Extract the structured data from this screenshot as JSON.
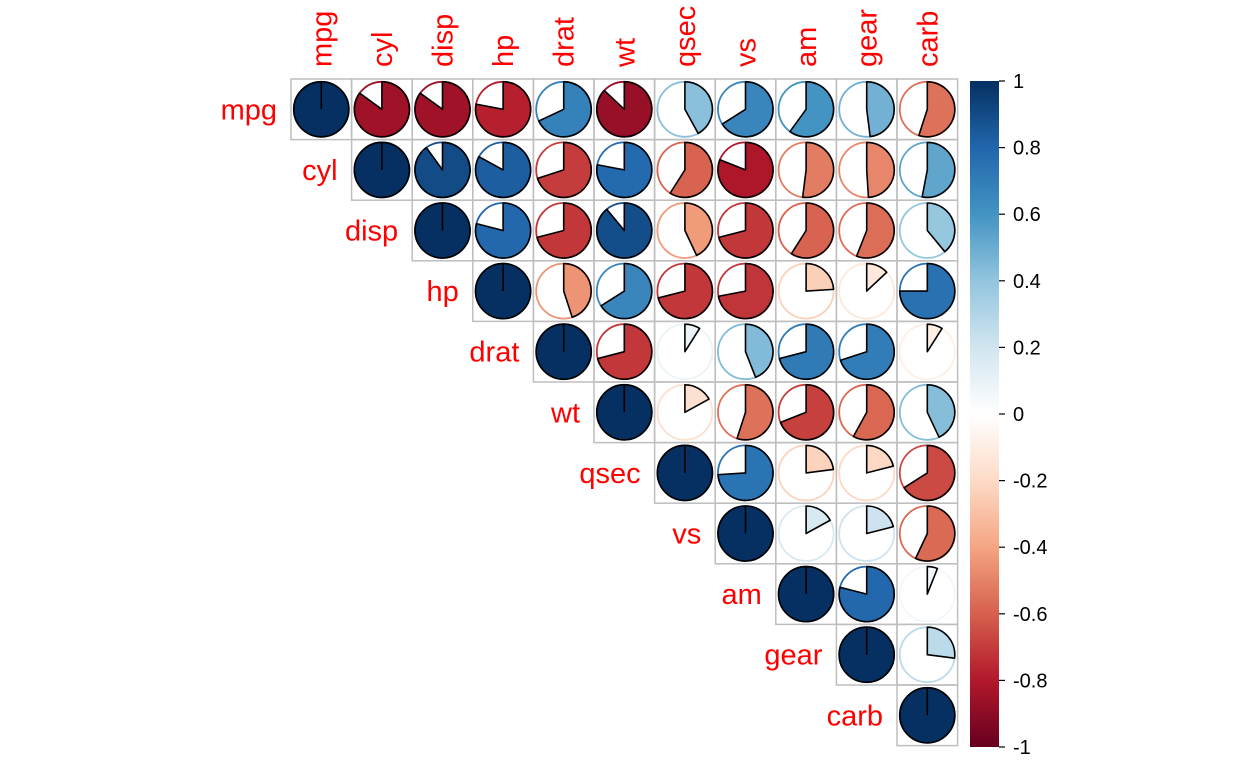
{
  "chart_data": {
    "type": "heatmap",
    "variables": [
      "mpg",
      "cyl",
      "disp",
      "hp",
      "drat",
      "wt",
      "qsec",
      "vs",
      "am",
      "gear",
      "carb"
    ],
    "layout": "upper-triangle",
    "method": "pie",
    "matrix": [
      [
        1,
        -0.85,
        -0.85,
        -0.78,
        0.68,
        -0.87,
        0.42,
        0.66,
        0.6,
        0.48,
        -0.55
      ],
      [
        -0.85,
        1,
        0.9,
        0.83,
        -0.7,
        0.78,
        -0.59,
        -0.81,
        -0.52,
        -0.49,
        0.53
      ],
      [
        -0.85,
        0.9,
        1,
        0.79,
        -0.71,
        0.89,
        -0.43,
        -0.71,
        -0.59,
        -0.56,
        0.39
      ],
      [
        -0.78,
        0.83,
        0.79,
        1,
        -0.45,
        0.66,
        -0.71,
        -0.72,
        -0.24,
        -0.13,
        0.75
      ],
      [
        0.68,
        -0.7,
        -0.71,
        -0.45,
        1,
        -0.71,
        0.09,
        0.44,
        0.71,
        0.7,
        -0.09
      ],
      [
        -0.87,
        0.78,
        0.89,
        0.66,
        -0.71,
        1,
        -0.17,
        -0.55,
        -0.69,
        -0.58,
        0.43
      ],
      [
        0.42,
        -0.59,
        -0.43,
        -0.71,
        0.09,
        -0.17,
        1,
        0.74,
        -0.23,
        -0.21,
        -0.66
      ],
      [
        0.66,
        -0.81,
        -0.71,
        -0.72,
        0.44,
        -0.55,
        0.74,
        1,
        0.17,
        0.21,
        -0.57
      ],
      [
        0.6,
        -0.52,
        -0.59,
        -0.24,
        0.71,
        -0.69,
        -0.23,
        0.17,
        1,
        0.79,
        0.06
      ],
      [
        0.48,
        -0.49,
        -0.56,
        -0.13,
        0.7,
        -0.58,
        -0.21,
        0.21,
        0.79,
        1,
        0.27
      ],
      [
        -0.55,
        0.53,
        0.39,
        0.75,
        -0.09,
        0.43,
        -0.66,
        -0.57,
        0.06,
        0.27,
        1
      ]
    ],
    "colorbar": {
      "range": [
        -1,
        1
      ],
      "ticks": [
        "1",
        "0.8",
        "0.6",
        "0.4",
        "0.2",
        "0",
        "-0.2",
        "-0.4",
        "-0.6",
        "-0.8",
        "-1"
      ],
      "palette": [
        "#67001F",
        "#B2182B",
        "#D6604D",
        "#F4A582",
        "#FDDBC7",
        "#FFFFFF",
        "#D1E5F0",
        "#92C5DE",
        "#4393C3",
        "#2166AC",
        "#053061"
      ]
    },
    "label_color": "#FF0000",
    "grid_color": "#BEBEBE"
  }
}
